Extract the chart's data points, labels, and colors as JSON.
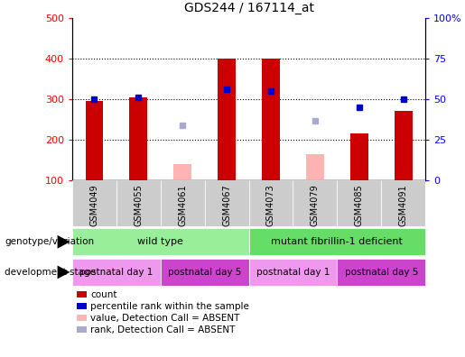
{
  "title": "GDS244 / 167114_at",
  "samples": [
    "GSM4049",
    "GSM4055",
    "GSM4061",
    "GSM4067",
    "GSM4073",
    "GSM4079",
    "GSM4085",
    "GSM4091"
  ],
  "bar_values": [
    295,
    305,
    null,
    400,
    400,
    null,
    215,
    270
  ],
  "bar_absent_values": [
    null,
    null,
    140,
    null,
    null,
    165,
    null,
    null
  ],
  "rank_values": [
    300,
    305,
    null,
    325,
    320,
    null,
    280,
    300
  ],
  "rank_absent_values": [
    null,
    null,
    235,
    null,
    null,
    247,
    null,
    null
  ],
  "ylim_left": [
    100,
    500
  ],
  "ylim_right": [
    0,
    100
  ],
  "yticks_left": [
    100,
    200,
    300,
    400,
    500
  ],
  "yticks_right": [
    0,
    25,
    50,
    75,
    100
  ],
  "ytick_labels_right": [
    "0",
    "25",
    "50",
    "75",
    "100%"
  ],
  "bar_color": "#cc0000",
  "bar_absent_color": "#ffb3b3",
  "rank_color": "#0000cc",
  "rank_absent_color": "#aaaacc",
  "genotype_groups": [
    {
      "label": "wild type",
      "start": 0,
      "end": 4,
      "color": "#99ee99"
    },
    {
      "label": "mutant fibrillin-1 deficient",
      "start": 4,
      "end": 8,
      "color": "#66dd66"
    }
  ],
  "stage_groups": [
    {
      "label": "postnatal day 1",
      "start": 0,
      "end": 2,
      "color": "#ee99ee"
    },
    {
      "label": "postnatal day 5",
      "start": 2,
      "end": 4,
      "color": "#cc44cc"
    },
    {
      "label": "postnatal day 1",
      "start": 4,
      "end": 6,
      "color": "#ee99ee"
    },
    {
      "label": "postnatal day 5",
      "start": 6,
      "end": 8,
      "color": "#cc44cc"
    }
  ],
  "legend_items": [
    {
      "label": "count",
      "color": "#cc0000"
    },
    {
      "label": "percentile rank within the sample",
      "color": "#0000cc"
    },
    {
      "label": "value, Detection Call = ABSENT",
      "color": "#ffb3b3"
    },
    {
      "label": "rank, Detection Call = ABSENT",
      "color": "#aaaacc"
    }
  ],
  "background_color": "#ffffff",
  "plot_bg": "#ffffff",
  "sample_bg": "#cccccc",
  "grid_color": "#000000",
  "grid_dotted_at": [
    200,
    300,
    400
  ],
  "bar_width": 0.4
}
